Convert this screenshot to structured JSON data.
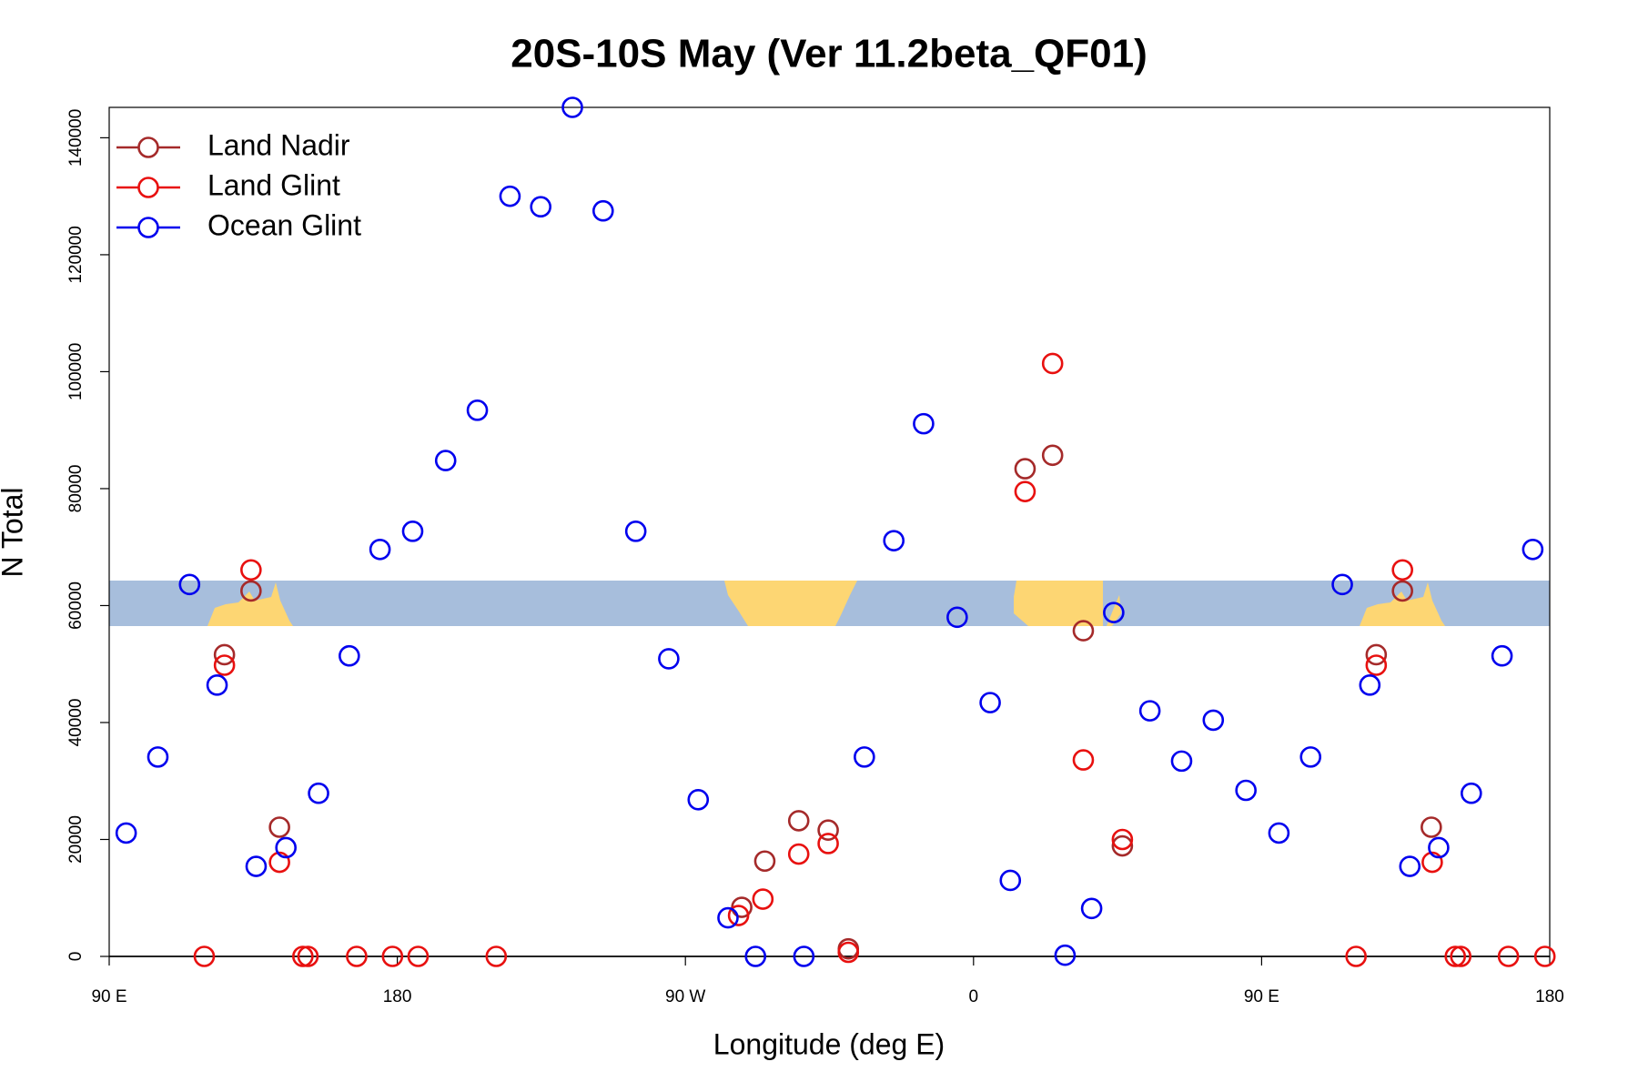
{
  "chart_data": {
    "type": "scatter",
    "title": "20S-10S May (Ver 11.2beta_QF01)",
    "x_label": "Longitude (deg E)",
    "y_label": "N Total",
    "xlim": [
      90,
      540
    ],
    "ylim": [
      0,
      145200
    ],
    "xticks": [
      {
        "value": 90,
        "label": "90 E"
      },
      180,
      {
        "value": 270,
        "label": "90 W"
      },
      {
        "value": 360,
        "label": "0"
      },
      {
        "value": 450,
        "label": "90 E"
      },
      {
        "value": 540,
        "label": "180"
      }
    ],
    "yticks": [
      0,
      20000,
      40000,
      60000,
      80000,
      100000,
      120000,
      140000
    ],
    "legend": "top-left",
    "series": [
      {
        "name": "Land Nadir",
        "color": "#a52a2a",
        "x": [
          126.0,
          134.3,
          143.2,
          287.6,
          294.8,
          305.4,
          314.6,
          320.9,
          376.1,
          384.7,
          394.3,
          406.5,
          485.8,
          494.0,
          503.0
        ],
        "values": [
          51600,
          62500,
          22100,
          8400,
          16300,
          23200,
          21600,
          1300,
          83400,
          85700,
          55700,
          18900,
          51600,
          62500,
          22100
        ]
      },
      {
        "name": "Land Glint",
        "color": "#e8100f",
        "x": [
          119.7,
          126.0,
          134.3,
          143.2,
          150.5,
          152.1,
          167.3,
          178.5,
          186.5,
          210.9,
          286.6,
          294.2,
          305.4,
          314.6,
          320.9,
          376.1,
          384.7,
          394.3,
          406.5,
          479.5,
          485.8,
          494.0,
          503.3,
          510.5,
          512.2,
          527.1,
          538.5
        ],
        "values": [
          0,
          49800,
          66100,
          16100,
          0,
          0,
          0,
          0,
          0,
          0,
          7000,
          9800,
          17500,
          19300,
          700,
          79500,
          101400,
          33600,
          20000,
          0,
          49800,
          66100,
          16100,
          0,
          0,
          0,
          0
        ]
      },
      {
        "name": "Ocean Glint",
        "color": "#0000ee",
        "x": [
          95.3,
          105.2,
          115.1,
          123.7,
          135.9,
          145.2,
          155.4,
          165.0,
          174.6,
          184.8,
          195.1,
          205.0,
          215.2,
          224.8,
          234.7,
          244.3,
          254.5,
          264.8,
          274.0,
          283.3,
          291.9,
          307.0,
          325.9,
          335.1,
          344.4,
          354.9,
          365.2,
          371.5,
          388.6,
          396.9,
          403.8,
          415.1,
          425.0,
          434.9,
          445.1,
          455.4,
          465.3,
          475.2,
          483.8,
          496.3,
          505.3,
          515.5,
          525.1,
          534.7
        ],
        "values": [
          21100,
          34100,
          63600,
          46400,
          15400,
          18600,
          27900,
          51400,
          69600,
          72700,
          84800,
          93400,
          130000,
          128200,
          145200,
          127500,
          72700,
          50900,
          26800,
          6600,
          0,
          0,
          34100,
          71100,
          91100,
          58000,
          43400,
          13000,
          200,
          8200,
          58800,
          42000,
          33400,
          40400,
          28400,
          21100,
          34100,
          63600,
          46400,
          15400,
          18600,
          27900,
          51400,
          69600
        ]
      }
    ]
  }
}
